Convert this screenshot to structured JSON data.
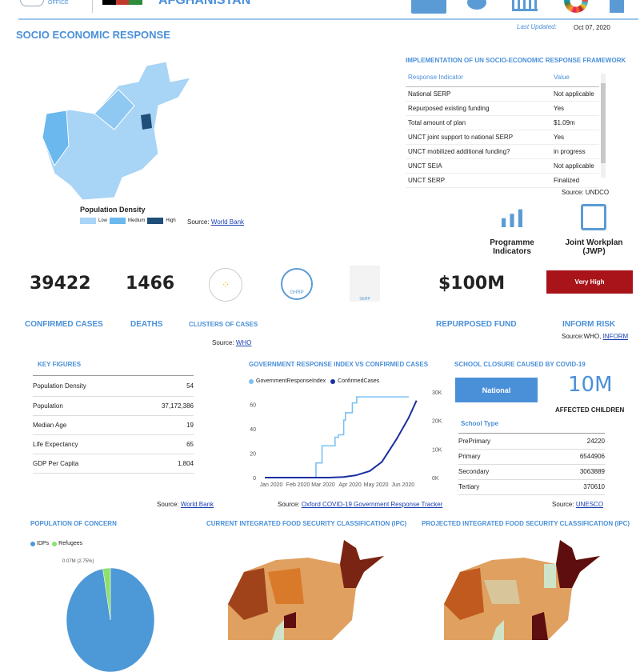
{
  "header": {
    "office_label": "OFFICE",
    "country": "AFGHANISTAN",
    "last_updated_label": "Last Updated:",
    "last_updated": "Oct 07, 2020"
  },
  "nav_icons": [
    "exit-icon",
    "virus-icon",
    "institution-icon",
    "sdg-wheel-icon",
    "home-icon"
  ],
  "page_title": "SOCIO ECONOMIC RESPONSE",
  "density_legend": {
    "title": "Population Density",
    "items": [
      {
        "label": "Low",
        "color": "#a8d4f5"
      },
      {
        "label": "Medium",
        "color": "#6ab8ee"
      },
      {
        "label": "High",
        "color": "#1e4e79"
      }
    ],
    "source_label": "Source:",
    "source_link": "World Bank"
  },
  "serp": {
    "title": "IMPLEMENTATION OF UN SOCIO-ECONOMIC RESPONSE FRAMEWORK",
    "col1": "Response Indicator",
    "col2": "Value",
    "rows": [
      [
        "National SERP",
        "Not applicable"
      ],
      [
        "Repurposed existing funding",
        "Yes"
      ],
      [
        "Total amount of plan",
        "$1.09m"
      ],
      [
        "UNCT joint support to national SERP",
        "Yes"
      ],
      [
        "UNCT mobilized additional funding?",
        "in progress"
      ],
      [
        "UNCT SEIA",
        "Not applicable"
      ],
      [
        "UNCT SERP",
        "Finalized"
      ]
    ],
    "source": "Source: UNDCO"
  },
  "links": {
    "programme": "Programme Indicators",
    "jwp": "Joint Workplan (JWP)"
  },
  "kpis": {
    "confirmed": "39422",
    "confirmed_label": "CONFIRMED CASES",
    "deaths": "1466",
    "deaths_label": "DEATHS",
    "clusters_label": "CLUSTERS OF CASES",
    "ghrp": "GHRP",
    "serp": "SERP",
    "fund": "$100M",
    "fund_label": "REPURPOSED FUND",
    "risk": "Very High",
    "risk_label": "INFORM RISK",
    "risk_color": "#a8141a",
    "source_who_label": "Source:",
    "source_who": "WHO",
    "source_inform_label": "Source:WHO,",
    "source_inform": "INFORM"
  },
  "key_figures": {
    "title": "KEY FIGURES",
    "rows": [
      [
        "Population Density",
        "54"
      ],
      [
        "Population",
        "37,172,386"
      ],
      [
        "Median Age",
        "19"
      ],
      [
        "Life Expectancy",
        "65"
      ],
      [
        "GDP Per Capita",
        "1,804"
      ]
    ],
    "source_label": "Source:",
    "source_link": "World Bank"
  },
  "chart_data": {
    "type": "line",
    "title": "GOVERNMENT RESPONSE INDEX VS CONFIRMED CASES",
    "x_ticks": [
      "Jan 2020",
      "Feb 2020",
      "Mar 2020",
      "Apr 2020",
      "May 2020",
      "Jun 2020"
    ],
    "y_left_ticks": [
      "0",
      "20",
      "40",
      "60"
    ],
    "y_right_ticks": [
      "0K",
      "10K",
      "20K",
      "30K"
    ],
    "ylim_left": [
      0,
      70
    ],
    "ylim_right": [
      0,
      30000
    ],
    "legend_position": "top-left",
    "series": [
      {
        "name": "GovernmentResponseIndex",
        "color": "#7cc0f2",
        "axis": "left",
        "x": [
          "2020-01-01",
          "2020-02-27",
          "2020-02-29",
          "2020-03-07",
          "2020-03-22",
          "2020-03-26",
          "2020-04-01",
          "2020-04-03",
          "2020-04-11",
          "2020-04-16",
          "2020-06-15"
        ],
        "y": [
          0,
          0,
          12,
          26,
          33,
          35,
          47,
          53,
          61,
          66,
          66
        ]
      },
      {
        "name": "ConfirmedCases",
        "color": "#1a2fa0",
        "axis": "right",
        "x": [
          "2020-01-01",
          "2020-03-15",
          "2020-04-01",
          "2020-04-15",
          "2020-05-01",
          "2020-05-15",
          "2020-06-01",
          "2020-06-15",
          "2020-06-24"
        ],
        "y": [
          0,
          10,
          200,
          800,
          2300,
          5500,
          13500,
          21000,
          27000
        ]
      }
    ],
    "source_label": "Source:",
    "source_link": "Oxford COVID-19 Government Response Tracker"
  },
  "school": {
    "title": "SCHOOL CLOSURE CAUSED BY COVID-19",
    "type_button": "National",
    "affected": "10M",
    "affected_label": "AFFECTED CHILDREN",
    "table_title": "School Type",
    "rows": [
      [
        "PrePrimary",
        "24220"
      ],
      [
        "Primary",
        "6544906"
      ],
      [
        "Secondary",
        "3063889"
      ],
      [
        "Tertiary",
        "370610"
      ]
    ],
    "source_label": "Source:",
    "source_link": "UNESCO"
  },
  "poc": {
    "title": "POPULATION OF CONCERN",
    "legend": [
      {
        "label": "IDPs",
        "color": "#4d98d6"
      },
      {
        "label": "Refugees",
        "color": "#8ee06e"
      }
    ],
    "refugee_label": "0.07M (2.75%)",
    "refugee_pct": 2.75
  },
  "ipc_current_title": "CURRENT INTEGRATED FOOD SECURITY CLASSIFICATION (IPC)",
  "ipc_projected_title": "PROJECTED INTEGRATED FOOD SECURITY CLASSIFICATION (IPC)"
}
